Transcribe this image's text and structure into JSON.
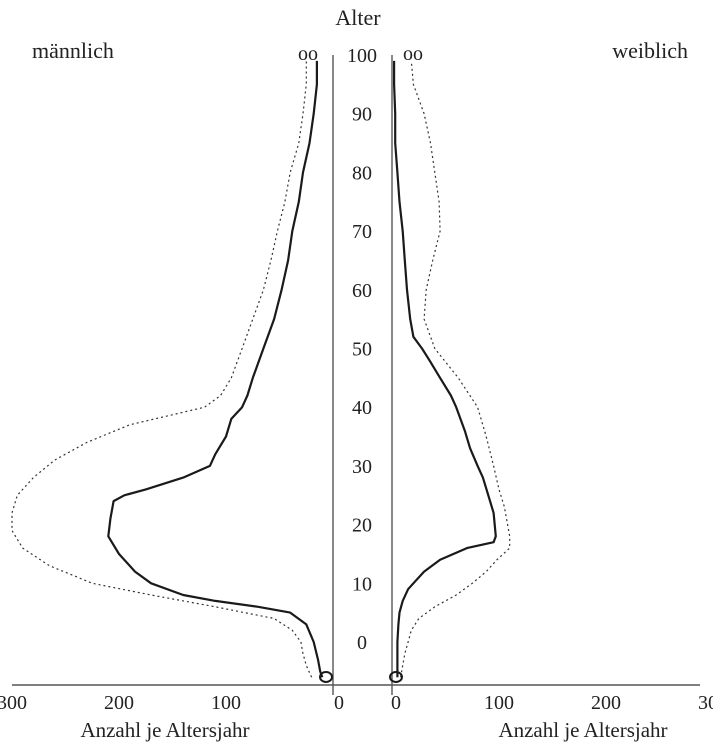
{
  "chart_data": {
    "type": "line",
    "subtype": "population-pyramid",
    "age_label": "Alter",
    "male_label": "männlich",
    "female_label": "weiblich",
    "xlabel": "Anzahl je Altersjahr",
    "age_ticks": [
      "0",
      "10",
      "20",
      "30",
      "40",
      "50",
      "60",
      "70",
      "80",
      "90",
      "100"
    ],
    "count_ticks": [
      "0",
      "100",
      "200",
      "300"
    ],
    "extra_markers": [
      "oo",
      "oo"
    ],
    "age_range": [
      -7,
      100
    ],
    "count_range": [
      0,
      300
    ],
    "male": {
      "solid": {
        "age": [
          -6,
          -5,
          -3,
          0,
          3,
          5,
          6,
          7,
          8,
          10,
          12,
          15,
          18,
          21,
          24,
          25,
          26,
          28,
          30,
          32,
          35,
          38,
          40,
          42,
          45,
          50,
          55,
          60,
          65,
          70,
          75,
          80,
          85,
          90,
          95,
          99
        ],
        "count": [
          10,
          12,
          14,
          18,
          25,
          40,
          70,
          110,
          140,
          170,
          185,
          200,
          210,
          208,
          205,
          195,
          175,
          140,
          115,
          110,
          100,
          95,
          85,
          80,
          75,
          65,
          55,
          48,
          42,
          38,
          32,
          28,
          22,
          18,
          15,
          15
        ]
      },
      "dotted": {
        "age": [
          -6,
          -4,
          -2,
          0,
          2,
          4,
          6,
          8,
          10,
          13,
          16,
          19,
          22,
          25,
          28,
          31,
          34,
          37,
          40,
          42,
          45,
          50,
          55,
          60,
          65,
          70,
          75,
          80,
          85,
          90,
          95,
          99
        ],
        "count": [
          20,
          25,
          28,
          30,
          38,
          55,
          110,
          170,
          225,
          265,
          290,
          300,
          300,
          295,
          280,
          260,
          230,
          190,
          120,
          105,
          95,
          85,
          75,
          65,
          58,
          52,
          45,
          40,
          32,
          28,
          25,
          25
        ]
      }
    },
    "female": {
      "solid": {
        "age": [
          -6,
          -5,
          -3,
          0,
          3,
          5,
          7,
          9,
          10,
          12,
          14,
          16,
          17,
          18,
          20,
          22,
          25,
          28,
          30,
          33,
          36,
          40,
          42,
          45,
          48,
          50,
          52,
          55,
          60,
          65,
          70,
          75,
          80,
          85,
          90,
          95,
          99
        ],
        "count": [
          5,
          5,
          5,
          5,
          6,
          7,
          10,
          15,
          20,
          30,
          45,
          70,
          95,
          97,
          96,
          95,
          90,
          85,
          80,
          73,
          68,
          60,
          55,
          45,
          35,
          28,
          20,
          17,
          14,
          12,
          10,
          7,
          5,
          3,
          3,
          2,
          2
        ]
      },
      "dotted": {
        "age": [
          -6,
          -4,
          -2,
          0,
          2,
          4,
          6,
          8,
          10,
          12,
          14,
          16,
          18,
          20,
          23,
          26,
          30,
          35,
          40,
          45,
          50,
          55,
          60,
          65,
          70,
          75,
          80,
          85,
          90,
          95,
          99
        ],
        "count": [
          8,
          10,
          12,
          15,
          18,
          25,
          40,
          60,
          75,
          88,
          98,
          110,
          110,
          108,
          105,
          100,
          95,
          88,
          80,
          62,
          40,
          30,
          32,
          38,
          45,
          44,
          40,
          36,
          30,
          20,
          18
        ]
      }
    },
    "colors": {
      "line": "#1a1a1a",
      "dotted": "#333333",
      "axis": "#555555",
      "background": "#ffffff"
    }
  }
}
